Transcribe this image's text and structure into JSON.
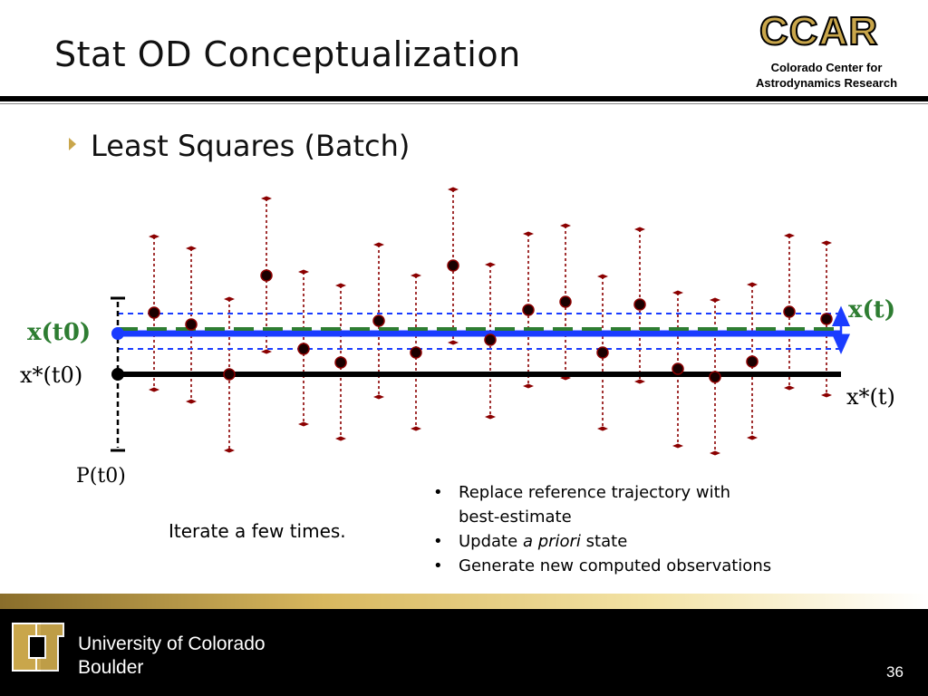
{
  "header": {
    "title": "Stat OD Conceptualization",
    "logo_text": "CCAR",
    "logo_subtitle_line1": "Colorado Center for",
    "logo_subtitle_line2": "Astrodynamics Research"
  },
  "bullet": {
    "text": "Least Squares (Batch)"
  },
  "diagram_labels": {
    "x_t0": "x(t0)",
    "xstar_t0": "x*(t0)",
    "P_t0": "P(t0)",
    "x_t": "x(t)",
    "xstar_t": "x*(t)"
  },
  "iterate_text": "Iterate a few times.",
  "notes": [
    "Replace reference trajectory with",
    "best-estimate",
    "Update",
    "a priori",
    "state",
    "Generate new computed observations"
  ],
  "footer": {
    "university_line1": "University of Colorado",
    "university_line2": "Boulder",
    "page_number": "36"
  },
  "colors": {
    "accent_gold": "#c9a64b",
    "estimate_blue": "#1a3cff",
    "reference_black": "#000000",
    "dashed_green": "#2e7d32",
    "errorbar_red": "#8b0000"
  }
}
